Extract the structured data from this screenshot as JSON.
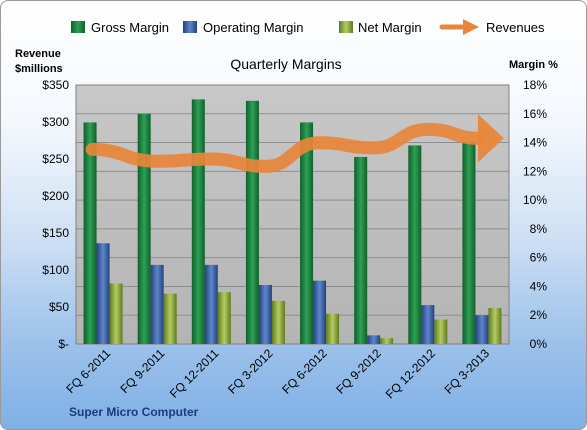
{
  "chart_data": {
    "type": "bar",
    "title": "Quarterly Margins",
    "left_axis_title": [
      "Revenue",
      "$millions"
    ],
    "right_axis_title": "Margin %",
    "categories": [
      "FQ 6-2011",
      "FQ 9-2011",
      "FQ 12-2011",
      "FQ 3-2012",
      "FQ 6-2012",
      "FQ 9-2012",
      "FQ 12-2012",
      "FQ 3-2013"
    ],
    "left_ticks": [
      "$-",
      "$50",
      "$100",
      "$150",
      "$200",
      "$250",
      "$300",
      "$350"
    ],
    "right_ticks": [
      "0%",
      "2%",
      "4%",
      "6%",
      "8%",
      "10%",
      "12%",
      "14%",
      "16%",
      "18%"
    ],
    "left_ylim": [
      0,
      350
    ],
    "right_ylim": [
      0,
      18
    ],
    "series": [
      {
        "name": "Gross Margin",
        "color": "#1e7a3c",
        "axis": "right",
        "values": [
          15.4,
          16.0,
          17.0,
          16.9,
          15.4,
          13.0,
          13.8,
          14.0
        ]
      },
      {
        "name": "Operating Margin",
        "color": "#3b5fa6",
        "axis": "right",
        "values": [
          7.0,
          5.5,
          5.5,
          4.1,
          4.4,
          0.6,
          2.7,
          2.0
        ]
      },
      {
        "name": "Net Margin",
        "color": "#8aa83a",
        "axis": "right",
        "values": [
          4.2,
          3.5,
          3.6,
          3.0,
          2.1,
          0.4,
          1.7,
          2.5
        ]
      },
      {
        "name": "Revenues",
        "color": "#e8863a",
        "axis": "left",
        "type": "line",
        "values": [
          263,
          247,
          250,
          240,
          272,
          265,
          290,
          278
        ]
      }
    ],
    "legend_position": "top",
    "grid": true
  },
  "footer": "Super Micro Computer"
}
